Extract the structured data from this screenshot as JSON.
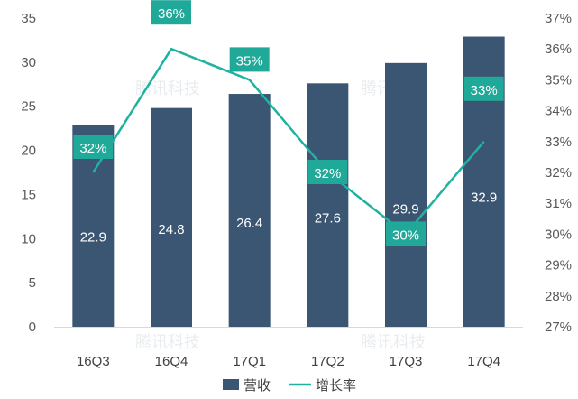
{
  "chart_data": {
    "type": "bar",
    "categories": [
      "16Q3",
      "16Q4",
      "17Q1",
      "17Q2",
      "17Q3",
      "17Q4"
    ],
    "series": [
      {
        "name": "营收",
        "type": "bar",
        "axis": "left",
        "color": "#3b5672",
        "values": [
          22.9,
          24.8,
          26.4,
          27.6,
          29.9,
          32.9
        ],
        "labels": [
          "22.9",
          "24.8",
          "26.4",
          "27.6",
          "29.9",
          "32.9"
        ]
      },
      {
        "name": "增长率",
        "type": "line",
        "axis": "right",
        "color": "#20b2a0",
        "values": [
          32,
          36,
          35,
          32,
          30,
          33
        ],
        "labels": [
          "32%",
          "36%",
          "35%",
          "32%",
          "30%",
          "33%"
        ]
      }
    ],
    "left_axis": {
      "ylim": [
        0,
        35
      ],
      "ticks": [
        "0",
        "5",
        "10",
        "15",
        "20",
        "25",
        "30",
        "35"
      ]
    },
    "right_axis": {
      "ylim": [
        27,
        37
      ],
      "ticks": [
        "27%",
        "28%",
        "29%",
        "30%",
        "31%",
        "32%",
        "33%",
        "34%",
        "35%",
        "36%",
        "37%"
      ]
    },
    "grid": false,
    "legend": "bottom",
    "watermark": "腾讯科技",
    "axis_text_color": "#595959",
    "label_box_color": "#20a898"
  }
}
